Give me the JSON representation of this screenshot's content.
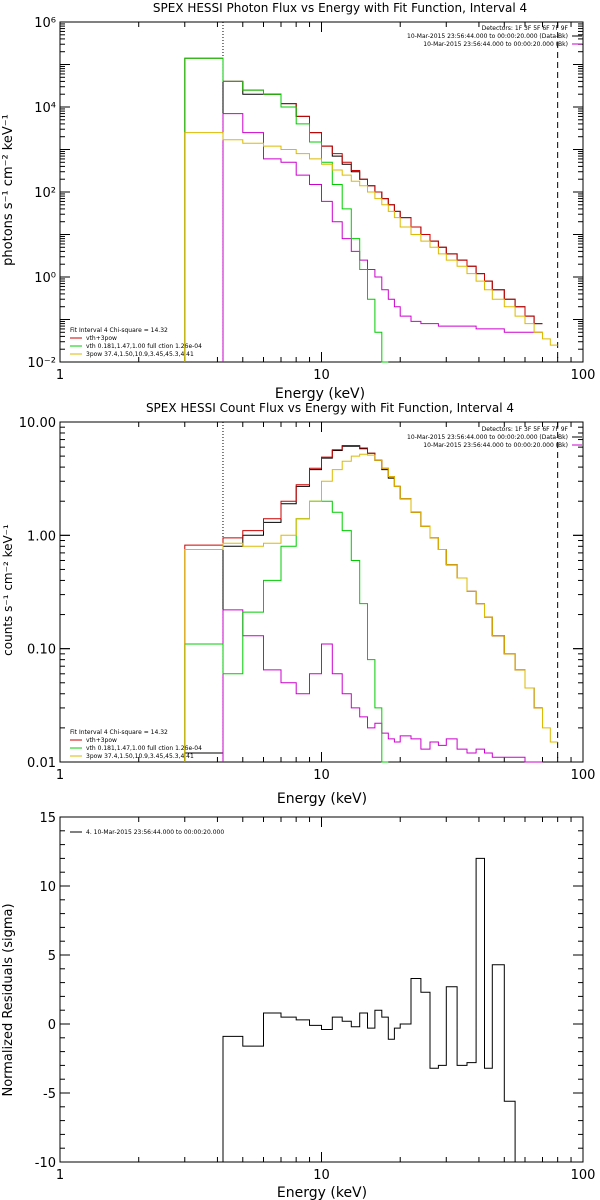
{
  "chart_data": [
    {
      "type": "line",
      "title": "SPEX HESSI Photon Flux vs Energy with Fit Function, Interval 4",
      "xlabel": "Energy (keV)",
      "ylabel": "photons s⁻¹ cm⁻² keV⁻¹",
      "x_scale": "log",
      "y_scale": "log",
      "xlim": [
        1,
        100
      ],
      "ylim": [
        0.01,
        1000000
      ],
      "x_ticks": [
        "1",
        "10",
        "100"
      ],
      "y_ticks": [
        {
          "value": 0.01,
          "label": "10⁻²"
        },
        {
          "value": 1,
          "label": "10⁰"
        },
        {
          "value": 100,
          "label": "10²"
        },
        {
          "value": 10000,
          "label": "10⁴"
        },
        {
          "value": 1000000,
          "label": "10⁶"
        }
      ],
      "vlines": [
        {
          "x": 4.2,
          "style": "dotted"
        },
        {
          "x": 80,
          "style": "dashed"
        }
      ],
      "legend_top": [
        "Detectors: 1F 3F 5F 6F 7F 9F",
        "10-Mar-2015 23:56:44.000 to 00:00:20.000 (Data-Bk)",
        "10-Mar-2015 23:56:44.000 to 00:00:20.000 (Bk)"
      ],
      "legend_bottom": [
        "Fit Interval 4   Chi-square = 14.32",
        "vth+3pow",
        "vth 0.181,1.47,1.00  full ction 1.26e-04",
        "3pow 37.4,1.50,10.9,3.45,45.3,4.41"
      ],
      "edges": [
        3,
        4.2,
        5,
        6,
        7,
        8,
        9,
        10,
        11,
        12,
        13,
        14,
        15,
        16,
        17,
        18,
        19,
        20,
        22,
        24,
        26,
        28,
        30,
        33,
        36,
        39,
        42,
        45,
        50,
        55,
        60,
        65,
        70,
        75,
        80,
        90,
        100
      ],
      "series": [
        {
          "name": "Data-Bk",
          "color": "#000000",
          "start": 1,
          "values": [
            40000,
            20000,
            20000,
            12000,
            6000,
            2500,
            1200,
            700,
            450,
            300,
            200,
            140,
            100,
            70,
            50,
            35,
            25,
            15,
            10,
            7,
            5,
            3.5,
            2.5,
            1.8,
            1.2,
            0.8,
            0.5,
            0.3,
            0.2,
            0.12,
            0.08
          ]
        },
        {
          "name": "Bk",
          "color": "#cc00cc",
          "start": 1,
          "values": [
            7000,
            2500,
            600,
            500,
            250,
            150,
            60,
            20,
            8,
            4,
            2.5,
            1.5,
            1,
            0.5,
            0.3,
            0.2,
            0.12,
            0.09,
            0.08,
            0.08,
            0.07,
            0.07,
            0.07,
            0.07,
            0.06,
            0.06,
            0.06,
            0.05,
            0.05,
            0.05,
            0.05
          ]
        },
        {
          "name": "vth+3pow",
          "color": "#cc0000",
          "start": 0,
          "values": [
            140000,
            40000,
            25000,
            20000,
            12000,
            6000,
            2500,
            1200,
            800,
            500,
            320,
            200,
            140,
            100,
            70,
            50,
            35,
            25,
            15,
            10,
            7,
            5,
            3.5,
            2.5,
            1.8,
            1.2,
            0.8,
            0.5,
            0.3,
            0.2,
            0.12,
            0.08
          ]
        },
        {
          "name": "vth",
          "color": "#00cc00",
          "start": 0,
          "values": [
            140000,
            40000,
            25000,
            20000,
            10000,
            4000,
            1500,
            500,
            150,
            40,
            8,
            1.5,
            0.3,
            0.05,
            0.01
          ]
        },
        {
          "name": "3pow",
          "color": "#ddbb00",
          "start": 0,
          "values": [
            2500,
            1700,
            1400,
            1200,
            1000,
            800,
            600,
            450,
            330,
            250,
            180,
            140,
            100,
            70,
            50,
            35,
            25,
            15,
            10,
            7,
            5,
            3.5,
            2.5,
            1.8,
            1.2,
            0.8,
            0.5,
            0.3,
            0.2,
            0.12,
            0.08,
            0.05,
            0.035,
            0.025
          ]
        }
      ]
    },
    {
      "type": "line",
      "title": "SPEX HESSI Count Flux vs Energy with Fit Function, Interval 4",
      "xlabel": "Energy (keV)",
      "ylabel": "counts s⁻¹ cm⁻² keV⁻¹",
      "x_scale": "log",
      "y_scale": "log",
      "xlim": [
        1,
        100
      ],
      "ylim": [
        0.01,
        10
      ],
      "x_ticks": [
        "1",
        "10",
        "100"
      ],
      "y_ticks": [
        {
          "value": 0.01,
          "label": "0.01"
        },
        {
          "value": 0.1,
          "label": "0.10"
        },
        {
          "value": 1,
          "label": "1.00"
        },
        {
          "value": 10,
          "label": "10.00"
        }
      ],
      "vlines": [
        {
          "x": 4.2,
          "style": "dotted"
        },
        {
          "x": 80,
          "style": "dashed"
        }
      ],
      "legend_top": [
        "Detectors: 1F 3F 5F 6F 7F 9F",
        "10-Mar-2015 23:56:44.000 to 00:00:20.000 (Data-Bk)",
        "10-Mar-2015 23:56:44.000 to 00:00:20.000 (Bk)"
      ],
      "legend_bottom": [
        "Fit Interval 4   Chi-square = 14.32",
        "vth+3pow",
        "vth 0.181,1.47,1.00  full ction 1.26e-04",
        "3pow 37.4,1.50,10.9,3.45,45.3,4.41"
      ],
      "edges": [
        3,
        4.2,
        5,
        6,
        7,
        8,
        9,
        10,
        11,
        12,
        13,
        14,
        15,
        16,
        17,
        18,
        19,
        20,
        22,
        24,
        26,
        28,
        30,
        33,
        36,
        39,
        42,
        45,
        50,
        55,
        60,
        65,
        70,
        75,
        80,
        90,
        100
      ],
      "series": [
        {
          "name": "Data-Bk",
          "color": "#000000",
          "start": 0,
          "values": [
            0.012,
            0.8,
            1.0,
            1.3,
            1.9,
            2.7,
            3.8,
            4.8,
            5.6,
            6.1,
            6.1,
            5.8,
            5.3,
            4.6,
            3.8,
            3.2,
            2.7,
            2.1,
            1.6,
            1.2,
            0.95,
            0.75,
            0.55,
            0.42,
            0.32,
            0.25,
            0.19,
            0.13,
            0.09,
            0.065,
            0.045,
            0.03
          ]
        },
        {
          "name": "Bk",
          "color": "#cc00cc",
          "start": 1,
          "values": [
            0.22,
            0.13,
            0.065,
            0.05,
            0.04,
            0.06,
            0.11,
            0.06,
            0.04,
            0.03,
            0.025,
            0.02,
            0.022,
            0.018,
            0.016,
            0.015,
            0.017,
            0.016,
            0.013,
            0.015,
            0.014,
            0.016,
            0.013,
            0.012,
            0.013,
            0.012,
            0.011,
            0.011,
            0.011,
            0.01,
            0.01
          ]
        },
        {
          "name": "vth+3pow",
          "color": "#cc0000",
          "start": 0,
          "values": [
            0.82,
            0.95,
            1.1,
            1.4,
            2.0,
            2.8,
            3.9,
            4.9,
            5.7,
            6.2,
            6.2,
            5.9,
            5.3,
            4.6,
            3.9,
            3.3,
            2.7,
            2.1,
            1.6,
            1.2,
            0.95,
            0.75,
            0.55,
            0.42,
            0.32,
            0.25,
            0.19,
            0.13,
            0.09,
            0.065,
            0.045,
            0.03
          ]
        },
        {
          "name": "vth",
          "color": "#00cc00",
          "start": 0,
          "values": [
            0.11,
            0.06,
            0.21,
            0.4,
            0.8,
            1.4,
            2.0,
            2.0,
            1.6,
            1.1,
            0.6,
            0.25,
            0.08,
            0.03,
            0.01
          ]
        },
        {
          "name": "3pow",
          "color": "#ddbb00",
          "start": 0,
          "values": [
            0.75,
            0.85,
            0.8,
            0.85,
            1.0,
            1.4,
            2.0,
            3.0,
            3.8,
            4.5,
            5.0,
            5.2,
            5.1,
            4.6,
            3.9,
            3.3,
            2.7,
            2.1,
            1.6,
            1.2,
            0.95,
            0.75,
            0.55,
            0.42,
            0.32,
            0.25,
            0.19,
            0.13,
            0.09,
            0.065,
            0.045,
            0.03,
            0.02,
            0.015
          ]
        }
      ]
    },
    {
      "type": "line",
      "title": "",
      "xlabel": "Energy (keV)",
      "ylabel": "Normalized Residuals (sigma)",
      "x_scale": "log",
      "y_scale": "linear",
      "xlim": [
        1,
        100
      ],
      "ylim": [
        -10,
        15
      ],
      "x_ticks": [
        "1",
        "10",
        "100"
      ],
      "y_ticks": [
        {
          "value": -10,
          "label": "-10"
        },
        {
          "value": -5,
          "label": "-5"
        },
        {
          "value": 0,
          "label": "0"
        },
        {
          "value": 5,
          "label": "5"
        },
        {
          "value": 10,
          "label": "10"
        },
        {
          "value": 15,
          "label": "15"
        }
      ],
      "legend": "4. 10-Mar-2015 23:56:44.000 to 00:00:20.000",
      "edges": [
        4.2,
        5,
        6,
        7,
        8,
        9,
        10,
        11,
        12,
        13,
        14,
        15,
        16,
        17,
        18,
        19,
        20,
        22,
        24,
        26,
        28,
        30,
        33,
        36,
        39,
        42,
        45,
        50,
        55,
        60,
        65,
        70,
        75,
        80
      ],
      "series": [
        {
          "name": "4. 10-Mar-2015 23:56:44.000 to 00:00:20.000",
          "color": "#000000",
          "start": 0,
          "values": [
            -0.9,
            -1.6,
            0.8,
            0.5,
            0.3,
            -0.1,
            -0.4,
            0.5,
            0.2,
            -0.2,
            0.8,
            -0.3,
            1.0,
            0.5,
            -1.1,
            -0.3,
            0.0,
            3.3,
            2.3,
            -3.2,
            -3.0,
            2.7,
            -3.0,
            -2.8,
            12.0,
            -3.2,
            4.3,
            -5.6,
            -10
          ]
        }
      ]
    }
  ]
}
